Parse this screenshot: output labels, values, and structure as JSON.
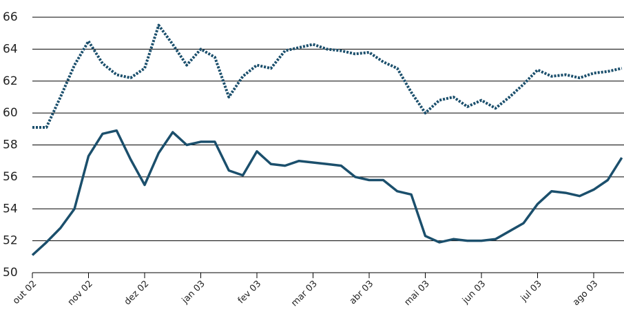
{
  "chart_data": {
    "type": "line",
    "categories": [
      "out 02",
      null,
      null,
      null,
      "nov 02",
      null,
      null,
      null,
      "dez 02",
      null,
      null,
      null,
      "jan 03",
      null,
      null,
      null,
      "fev 03",
      null,
      null,
      null,
      "mar 03",
      null,
      null,
      null,
      "abr 03",
      null,
      null,
      null,
      "mai 03",
      null,
      null,
      null,
      "jun 03",
      null,
      null,
      null,
      "jul 03",
      null,
      null,
      null,
      "ago 03",
      null,
      null
    ],
    "series": [
      {
        "color": "#1b4f6c",
        "style": "dotted",
        "values": [
          59.1,
          59.1,
          61.0,
          63.0,
          64.5,
          63.1,
          62.4,
          62.2,
          62.8,
          65.5,
          64.3,
          63.0,
          64.0,
          63.5,
          61.0,
          62.3,
          63.0,
          62.8,
          63.9,
          64.1,
          64.3,
          64.0,
          63.9,
          63.7,
          63.8,
          63.2,
          62.8,
          61.3,
          60.0,
          60.8,
          61.0,
          60.4,
          60.8,
          60.3,
          61.0,
          61.8,
          62.7,
          62.3,
          62.4,
          62.2,
          62.5,
          62.6,
          62.8
        ]
      },
      {
        "color": "#1b4f6c",
        "style": "solid",
        "values": [
          51.1,
          51.9,
          52.8,
          54.0,
          57.3,
          58.7,
          58.9,
          57.1,
          55.5,
          57.5,
          58.8,
          58.0,
          58.2,
          58.2,
          56.4,
          56.1,
          57.6,
          56.8,
          56.7,
          57.0,
          56.9,
          56.8,
          56.7,
          56.0,
          55.8,
          55.8,
          55.1,
          54.9,
          52.3,
          51.9,
          52.1,
          52.0,
          52.0,
          52.1,
          52.6,
          53.1,
          54.3,
          55.1,
          55.0,
          54.8,
          55.2,
          55.8,
          57.2
        ]
      }
    ],
    "ylim": [
      50,
      66
    ],
    "yticks": [
      50,
      52,
      54,
      56,
      58,
      60,
      62,
      64,
      66
    ],
    "grid": true
  }
}
